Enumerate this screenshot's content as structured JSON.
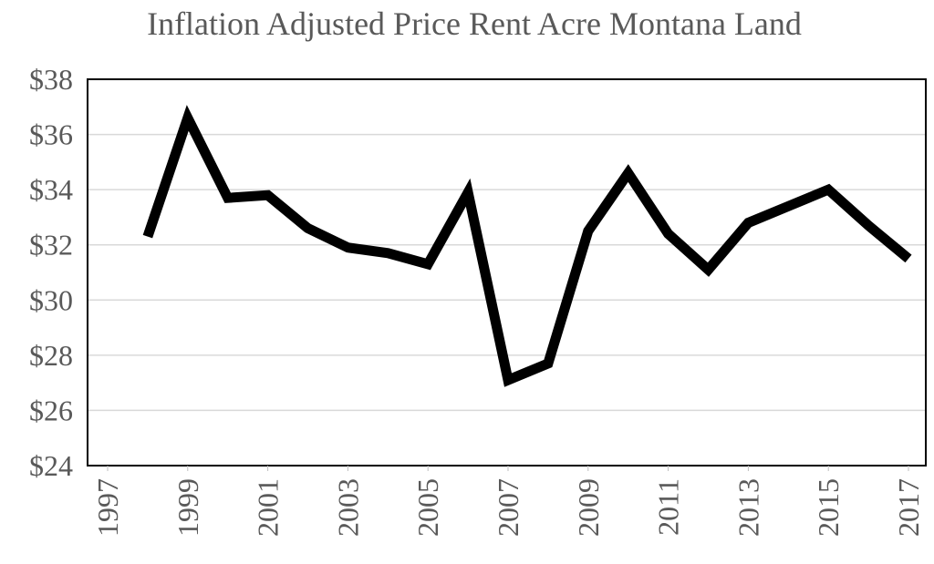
{
  "chart_data": {
    "type": "line",
    "title": "Inflation Adjusted Price Rent Acre Montana Land",
    "xlabel": "",
    "ylabel": "",
    "x": [
      1998,
      1999,
      2000,
      2001,
      2002,
      2003,
      2004,
      2005,
      2006,
      2007,
      2008,
      2009,
      2010,
      2011,
      2012,
      2013,
      2014,
      2015,
      2016,
      2017
    ],
    "series": [
      {
        "values": [
          32.3,
          36.6,
          33.7,
          33.8,
          32.6,
          31.9,
          31.7,
          31.3,
          33.9,
          27.1,
          27.7,
          32.5,
          34.6,
          32.4,
          31.1,
          32.8,
          33.4,
          34.0,
          32.7,
          31.5
        ]
      }
    ],
    "xlim": [
      1997,
      2017
    ],
    "ylim": [
      24,
      38
    ],
    "x_tick_labels": [
      "1997",
      "1999",
      "2001",
      "2003",
      "2005",
      "2007",
      "2009",
      "2011",
      "2013",
      "2015",
      "2017"
    ],
    "y_tick_labels": [
      "$24",
      "$26",
      "$28",
      "$30",
      "$32",
      "$34",
      "$36",
      "$38"
    ],
    "grid": "horizontal",
    "legend": "none",
    "line_color": "#000000",
    "grid_color": "#d9d9d9",
    "text_color": "#595959"
  }
}
